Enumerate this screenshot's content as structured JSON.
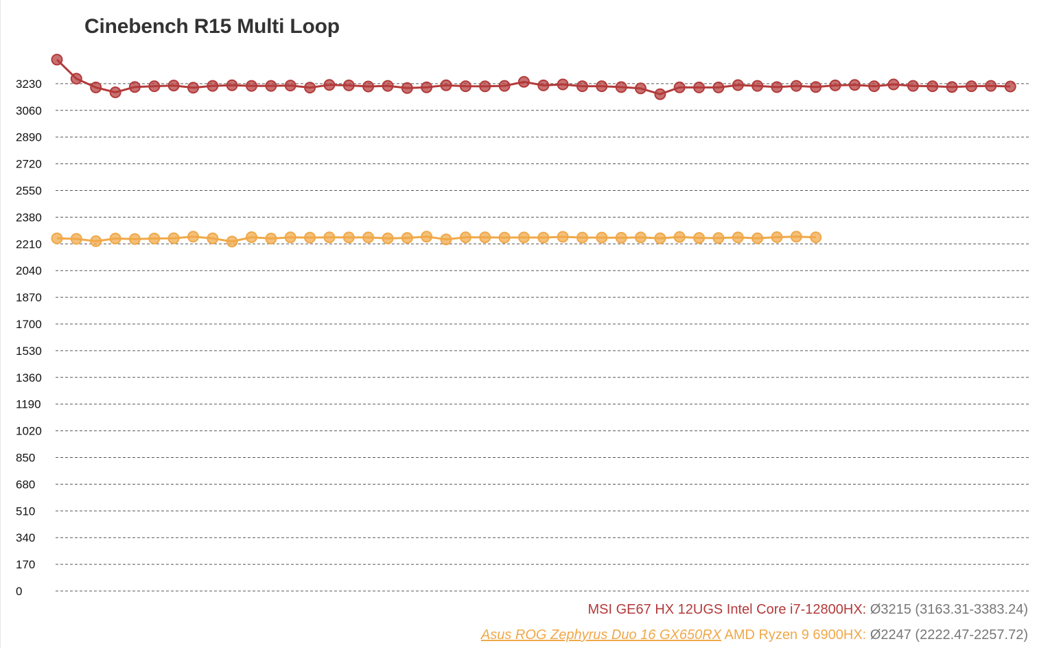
{
  "chart_data": {
    "type": "line",
    "title": "Cinebench R15 Multi Loop",
    "xlabel": "",
    "ylabel": "",
    "ylim": [
      0,
      3400
    ],
    "yticks": [
      0,
      170,
      340,
      510,
      680,
      850,
      1020,
      1190,
      1360,
      1530,
      1700,
      1870,
      2040,
      2210,
      2380,
      2550,
      2720,
      2890,
      3060,
      3230
    ],
    "grid": true,
    "legend_position": "bottom-right",
    "series": [
      {
        "name": "MSI GE67 HX 12UGS Intel Core i7-12800HX:",
        "stats": "Ø3215 (3163.31-3383.24)",
        "color": "#b33a3a",
        "values": [
          3383,
          3262,
          3206,
          3175,
          3209,
          3214,
          3218,
          3204,
          3216,
          3220,
          3216,
          3216,
          3218,
          3205,
          3222,
          3219,
          3212,
          3216,
          3202,
          3207,
          3220,
          3214,
          3213,
          3216,
          3242,
          3219,
          3225,
          3214,
          3214,
          3208,
          3200,
          3163,
          3207,
          3206,
          3206,
          3221,
          3216,
          3208,
          3216,
          3209,
          3219,
          3222,
          3214,
          3225,
          3216,
          3214,
          3209,
          3214,
          3216,
          3212
        ]
      },
      {
        "name": "Asus ROG Zephyrus Duo 16 GX650RX",
        "name_suffix": "AMD Ryzen 9 6900HX:",
        "stats": "Ø2247 (2222.47-2257.72)",
        "color": "#f0a848",
        "values": [
          2245,
          2242,
          2227,
          2244,
          2241,
          2244,
          2246,
          2256,
          2245,
          2225,
          2253,
          2244,
          2252,
          2250,
          2252,
          2251,
          2251,
          2245,
          2248,
          2256,
          2239,
          2252,
          2252,
          2250,
          2251,
          2250,
          2255,
          2250,
          2250,
          2249,
          2251,
          2246,
          2254,
          2248,
          2247,
          2251,
          2246,
          2253,
          2256,
          2252
        ]
      }
    ]
  }
}
